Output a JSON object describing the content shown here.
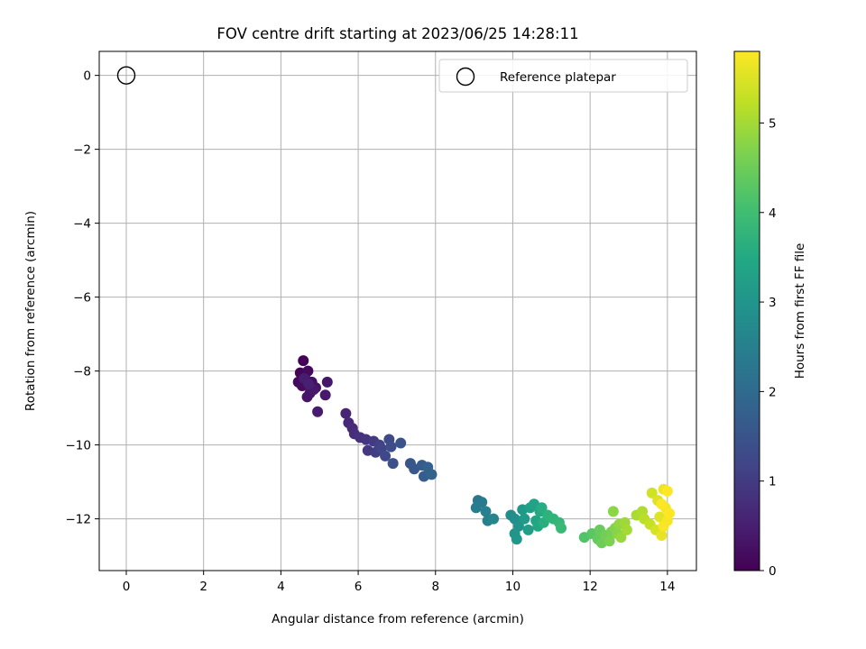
{
  "chart_data": {
    "type": "scatter",
    "title": "FOV centre drift starting at 2023/06/25 14:28:11",
    "xlabel": "Angular distance from reference (arcmin)",
    "ylabel": "Rotation from reference (arcmin)",
    "xlim": [
      -0.7,
      14.75
    ],
    "ylim": [
      -13.4,
      0.65
    ],
    "xticks": [
      0,
      2,
      4,
      6,
      8,
      10,
      12,
      14
    ],
    "yticks": [
      0,
      -2,
      -4,
      -6,
      -8,
      -10,
      -12
    ],
    "grid": true,
    "legend": {
      "position": "top-right",
      "entries": [
        "Reference platepar"
      ]
    },
    "reference_point": {
      "x": 0,
      "y": 0
    },
    "colorbar": {
      "label": "Hours from first FF file",
      "range": [
        0,
        5.8
      ],
      "ticks": [
        0,
        1,
        2,
        3,
        4,
        5
      ],
      "colormap": "viridis"
    },
    "series": [
      {
        "values": [
          [
            4.58,
            -7.72,
            0.03
          ],
          [
            4.5,
            -8.05,
            0.06
          ],
          [
            4.62,
            -8.1,
            0.09
          ],
          [
            4.45,
            -8.3,
            0.12
          ],
          [
            4.7,
            -8.0,
            0.15
          ],
          [
            4.55,
            -8.4,
            0.18
          ],
          [
            4.8,
            -8.3,
            0.21
          ],
          [
            4.65,
            -8.25,
            0.24
          ],
          [
            4.9,
            -8.45,
            0.27
          ],
          [
            4.75,
            -8.6,
            0.3
          ],
          [
            4.68,
            -8.7,
            0.33
          ],
          [
            5.2,
            -8.3,
            0.36
          ],
          [
            4.85,
            -8.5,
            0.39
          ],
          [
            5.15,
            -8.65,
            0.42
          ],
          [
            4.95,
            -9.1,
            0.45
          ],
          [
            4.6,
            -8.2,
            0.48
          ],
          [
            4.72,
            -8.35,
            0.51
          ],
          [
            5.68,
            -9.15,
            0.58
          ],
          [
            5.75,
            -9.4,
            0.64
          ],
          [
            5.85,
            -9.55,
            0.7
          ],
          [
            5.9,
            -9.7,
            0.76
          ],
          [
            6.05,
            -9.8,
            0.82
          ],
          [
            6.2,
            -9.85,
            0.88
          ],
          [
            6.25,
            -10.15,
            0.94
          ],
          [
            6.4,
            -9.9,
            1.0
          ],
          [
            6.45,
            -10.2,
            1.06
          ],
          [
            6.55,
            -10.0,
            1.12
          ],
          [
            6.6,
            -10.1,
            1.18
          ],
          [
            6.7,
            -10.3,
            1.24
          ],
          [
            6.8,
            -9.85,
            1.3
          ],
          [
            6.85,
            -10.05,
            1.36
          ],
          [
            6.9,
            -10.5,
            1.42
          ],
          [
            7.1,
            -9.95,
            1.48
          ],
          [
            7.35,
            -10.5,
            1.54
          ],
          [
            7.45,
            -10.65,
            1.6
          ],
          [
            7.65,
            -10.55,
            1.66
          ],
          [
            7.7,
            -10.85,
            1.72
          ],
          [
            7.8,
            -10.6,
            1.78
          ],
          [
            7.9,
            -10.8,
            1.84
          ],
          [
            9.1,
            -11.5,
            2.3
          ],
          [
            9.2,
            -11.55,
            2.36
          ],
          [
            9.05,
            -11.7,
            2.42
          ],
          [
            9.3,
            -11.8,
            2.48
          ],
          [
            9.35,
            -12.05,
            2.54
          ],
          [
            9.5,
            -12.0,
            2.6
          ],
          [
            9.95,
            -11.9,
            2.8
          ],
          [
            10.05,
            -12.0,
            2.86
          ],
          [
            10.15,
            -12.2,
            2.92
          ],
          [
            10.05,
            -12.4,
            2.98
          ],
          [
            10.1,
            -12.55,
            3.04
          ],
          [
            10.25,
            -11.75,
            3.1
          ],
          [
            10.3,
            -12.0,
            3.16
          ],
          [
            10.4,
            -12.3,
            3.22
          ],
          [
            10.45,
            -11.7,
            3.28
          ],
          [
            10.55,
            -11.6,
            3.34
          ],
          [
            10.6,
            -12.05,
            3.4
          ],
          [
            10.65,
            -12.2,
            3.46
          ],
          [
            10.7,
            -11.8,
            3.52
          ],
          [
            10.75,
            -11.7,
            3.58
          ],
          [
            10.8,
            -12.1,
            3.64
          ],
          [
            10.9,
            -11.9,
            3.7
          ],
          [
            11.05,
            -12.0,
            3.76
          ],
          [
            11.2,
            -12.1,
            3.82
          ],
          [
            11.25,
            -12.25,
            3.88
          ],
          [
            11.85,
            -12.5,
            4.2
          ],
          [
            12.05,
            -12.4,
            4.3
          ],
          [
            12.2,
            -12.55,
            4.4
          ],
          [
            12.25,
            -12.3,
            4.45
          ],
          [
            12.3,
            -12.65,
            4.5
          ],
          [
            12.4,
            -12.45,
            4.55
          ],
          [
            12.55,
            -12.35,
            4.6
          ],
          [
            12.5,
            -12.6,
            4.65
          ],
          [
            12.65,
            -12.25,
            4.7
          ],
          [
            12.7,
            -12.4,
            4.75
          ],
          [
            12.6,
            -11.8,
            4.8
          ],
          [
            12.75,
            -12.15,
            4.85
          ],
          [
            12.8,
            -12.5,
            4.9
          ],
          [
            12.9,
            -12.1,
            4.95
          ],
          [
            12.95,
            -12.3,
            5.0
          ],
          [
            13.2,
            -11.9,
            5.05
          ],
          [
            13.35,
            -11.8,
            5.1
          ],
          [
            13.4,
            -12.0,
            5.2
          ],
          [
            13.55,
            -12.15,
            5.3
          ],
          [
            13.6,
            -11.3,
            5.4
          ],
          [
            13.7,
            -12.3,
            5.45
          ],
          [
            13.75,
            -11.5,
            5.5
          ],
          [
            13.8,
            -11.95,
            5.55
          ],
          [
            13.85,
            -12.45,
            5.6
          ],
          [
            13.9,
            -11.2,
            5.65
          ],
          [
            13.95,
            -11.7,
            5.7
          ],
          [
            14.0,
            -12.05,
            5.75
          ],
          [
            14.05,
            -11.85,
            5.8
          ],
          [
            14.0,
            -11.25,
            5.8
          ],
          [
            13.85,
            -11.6,
            5.78
          ],
          [
            13.9,
            -12.2,
            5.76
          ]
        ]
      }
    ]
  }
}
